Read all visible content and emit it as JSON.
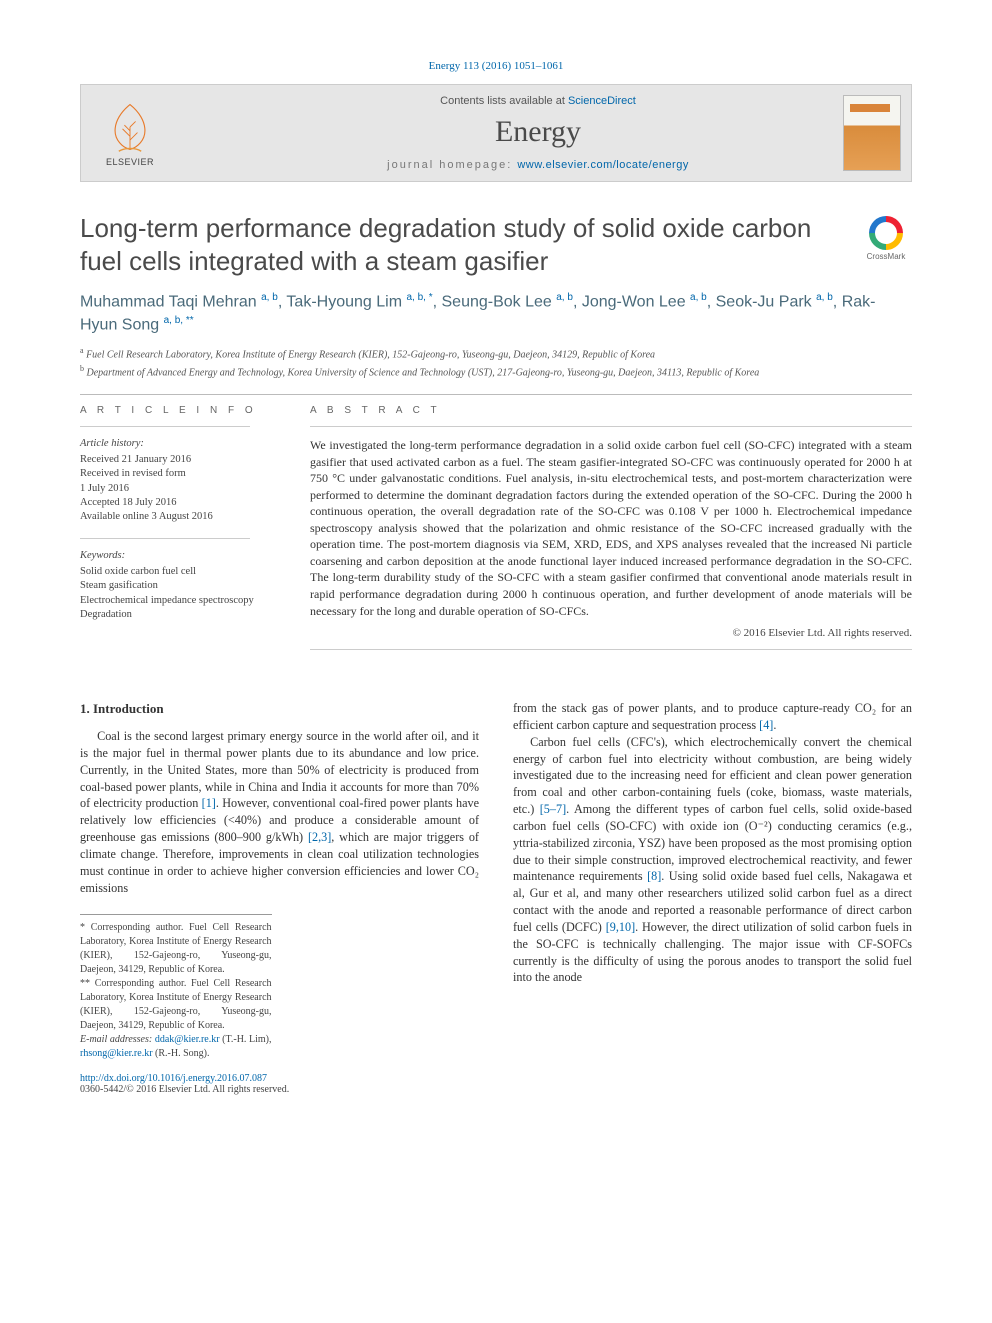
{
  "citation": "Energy 113 (2016) 1051–1061",
  "masthead": {
    "contents_prefix": "Contents lists available at ",
    "contents_link": "ScienceDirect",
    "journal_name": "Energy",
    "homepage_label": "journal homepage: ",
    "homepage_url": "www.elsevier.com/locate/energy",
    "publisher_logo_text": "ELSEVIER"
  },
  "crossmark_label": "CrossMark",
  "title": "Long-term performance degradation study of solid oxide carbon fuel cells integrated with a steam gasifier",
  "authors_html": "Muhammad Taqi Mehran <sup>a, b</sup>, Tak-Hyoung Lim <sup>a, b, *</sup>, Seung-Bok Lee <sup>a, b</sup>, Jong-Won Lee <sup>a, b</sup>, Seok-Ju Park <sup>a, b</sup>, Rak-Hyun Song <sup>a, b, **</sup>",
  "affiliations": [
    {
      "mark": "a",
      "text": "Fuel Cell Research Laboratory, Korea Institute of Energy Research (KIER), 152-Gajeong-ro, Yuseong-gu, Daejeon, 34129, Republic of Korea"
    },
    {
      "mark": "b",
      "text": "Department of Advanced Energy and Technology, Korea University of Science and Technology (UST), 217-Gajeong-ro, Yuseong-gu, Daejeon, 34113, Republic of Korea"
    }
  ],
  "info": {
    "heading": "A R T I C L E   I N F O",
    "history_label": "Article history:",
    "history": [
      "Received 21 January 2016",
      "Received in revised form",
      "1 July 2016",
      "Accepted 18 July 2016",
      "Available online 3 August 2016"
    ],
    "keywords_label": "Keywords:",
    "keywords": [
      "Solid oxide carbon fuel cell",
      "Steam gasification",
      "Electrochemical impedance spectroscopy",
      "Degradation"
    ]
  },
  "abstract": {
    "heading": "A B S T R A C T",
    "text": "We investigated the long-term performance degradation in a solid oxide carbon fuel cell (SO-CFC) integrated with a steam gasifier that used activated carbon as a fuel. The steam gasifier-integrated SO-CFC was continuously operated for 2000 h at 750 °C under galvanostatic conditions. Fuel analysis, in-situ electrochemical tests, and post-mortem characterization were performed to determine the dominant degradation factors during the extended operation of the SO-CFC. During the 2000 h continuous operation, the overall degradation rate of the SO-CFC was 0.108 V per 1000 h. Electrochemical impedance spectroscopy analysis showed that the polarization and ohmic resistance of the SO-CFC increased gradually with the operation time. The post-mortem diagnosis via SEM, XRD, EDS, and XPS analyses revealed that the increased Ni particle coarsening and carbon deposition at the anode functional layer induced increased performance degradation in the SO-CFC. The long-term durability study of the SO-CFC with a steam gasifier confirmed that conventional anode materials result in rapid performance degradation during 2000 h continuous operation, and further development of anode materials will be necessary for the long and durable operation of SO-CFCs.",
    "copyright": "© 2016 Elsevier Ltd. All rights reserved."
  },
  "body": {
    "section_heading": "1. Introduction",
    "col1_p1": "Coal is the second largest primary energy source in the world after oil, and it is the major fuel in thermal power plants due to its abundance and low price. Currently, in the United States, more than 50% of electricity is produced from coal-based power plants, while in China and India it accounts for more than 70% of electricity production [1]. However, conventional coal-fired power plants have relatively low efficiencies (<40%) and produce a considerable amount of greenhouse gas emissions (800–900 g/kWh) [2,3], which are major triggers of climate change. Therefore, improvements in clean coal utilization technologies must continue in order to achieve higher conversion efficiencies and lower CO₂ emissions",
    "col2_p1": "from the stack gas of power plants, and to produce capture-ready CO₂ for an efficient carbon capture and sequestration process [4].",
    "col2_p2": "Carbon fuel cells (CFC's), which electrochemically convert the chemical energy of carbon fuel into electricity without combustion, are being widely investigated due to the increasing need for efficient and clean power generation from coal and other carbon-containing fuels (coke, biomass, waste materials, etc.) [5–7]. Among the different types of carbon fuel cells, solid oxide-based carbon fuel cells (SO-CFC) with oxide ion (O⁻²) conducting ceramics (e.g., yttria-stabilized zirconia, YSZ) have been proposed as the most promising option due to their simple construction, improved electrochemical reactivity, and fewer maintenance requirements [8]. Using solid oxide based fuel cells, Nakagawa et al, Gur et al, and many other researchers utilized solid carbon fuel as a direct contact with the anode and reported a reasonable performance of direct carbon fuel cells (DCFC) [9,10]. However, the direct utilization of solid carbon fuels in the SO-CFC is technically challenging. The major issue with CF-SOFCs currently is the difficulty of using the porous anodes to transport the solid fuel into the anode"
  },
  "footnotes": {
    "c1": "* Corresponding author. Fuel Cell Research Laboratory, Korea Institute of Energy Research (KIER), 152-Gajeong-ro, Yuseong-gu, Daejeon, 34129, Republic of Korea.",
    "c2": "** Corresponding author. Fuel Cell Research Laboratory, Korea Institute of Energy Research (KIER), 152-Gajeong-ro, Yuseong-gu, Daejeon, 34129, Republic of Korea.",
    "email_label": "E-mail addresses: ",
    "email1": "ddak@kier.re.kr",
    "email1_who": " (T.-H. Lim), ",
    "email2": "rhsong@kier.re.kr",
    "email2_who": " (R.-H. Song)."
  },
  "doi": {
    "url": "http://dx.doi.org/10.1016/j.energy.2016.07.087",
    "issn_line": "0360-5442/© 2016 Elsevier Ltd. All rights reserved."
  },
  "colors": {
    "link": "#0066aa",
    "heading": "#4a4a4a",
    "author": "#4a6a7a",
    "mast_bg": "#e6e6e6"
  }
}
